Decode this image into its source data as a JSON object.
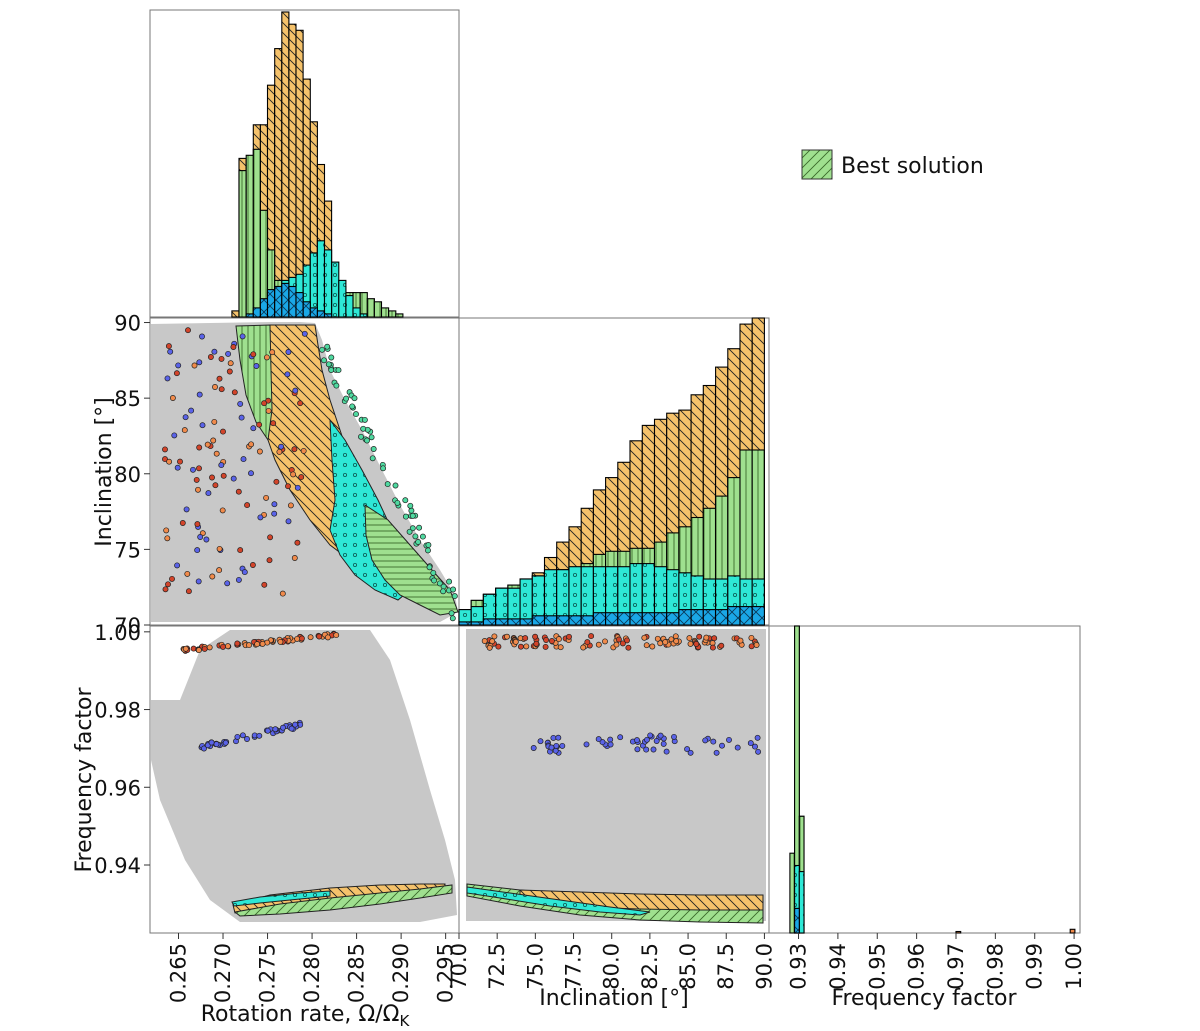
{
  "chart_data": {
    "type": "corner",
    "title": "",
    "legend": {
      "entries": [
        "Best solution"
      ],
      "placement": "top-right"
    },
    "colors": {
      "scatter_bg": "#c8c8c8",
      "orange": "#f5c26b",
      "light_green": "#9fe08f",
      "teal": "#2ee8d6",
      "blue": "#1aa7e6",
      "red_points": "#d2442a",
      "orange_points": "#f08a4b",
      "blue_points": "#5a63e8"
    },
    "axes": {
      "rotation": {
        "label": "Rotation rate, Ω/Ω",
        "label_sub": "K",
        "range": [
          0.2618,
          0.2965
        ],
        "ticks": [
          "0.265",
          "0.270",
          "0.275",
          "0.280",
          "0.285",
          "0.290",
          "0.295"
        ]
      },
      "inclination": {
        "label": "Inclination [°]",
        "range": [
          70,
          90.3
        ],
        "ticks": [
          "70.0",
          "72.5",
          "75.0",
          "77.5",
          "80.0",
          "82.5",
          "85.0",
          "87.5",
          "90.0"
        ],
        "y_ticks": [
          "70",
          "75",
          "80",
          "85",
          "90"
        ]
      },
      "frequency": {
        "label": "Frequency factor",
        "range": [
          0.9225,
          1.0015
        ],
        "ticks": [
          "0.93",
          "0.94",
          "0.95",
          "0.96",
          "0.97",
          "0.98",
          "0.99",
          "1.00"
        ],
        "y_ticks": [
          "0.94",
          "0.96",
          "0.98",
          "1.00"
        ]
      }
    },
    "hist_rotation": {
      "bin_edges": [
        0.271,
        0.2718,
        0.2726,
        0.2734,
        0.2742,
        0.275,
        0.2758,
        0.2766,
        0.2774,
        0.2782,
        0.279,
        0.2798,
        0.2806,
        0.2814,
        0.2822,
        0.283,
        0.2838,
        0.2846,
        0.2854,
        0.2862,
        0.287,
        0.2878,
        0.2886,
        0.2894,
        0.2902,
        0.291
      ],
      "series": [
        {
          "name": "orange",
          "values": [
            2,
            52,
            52,
            63,
            63,
            76,
            88,
            100,
            96,
            94,
            78,
            64,
            50,
            38,
            12,
            10,
            3,
            2,
            1,
            1,
            0,
            0,
            0,
            0,
            0
          ]
        },
        {
          "name": "light_green",
          "values": [
            0,
            48,
            53,
            55,
            35,
            22,
            12,
            8,
            6,
            5,
            6,
            5,
            8,
            10,
            10,
            10,
            8,
            8,
            8,
            6,
            5,
            3,
            2,
            1,
            0
          ]
        },
        {
          "name": "teal",
          "values": [
            0,
            0,
            0,
            2,
            5,
            8,
            10,
            12,
            13,
            14,
            17,
            21,
            25,
            22,
            18,
            12,
            7,
            3,
            1,
            0,
            0,
            0,
            0,
            0,
            0
          ]
        },
        {
          "name": "blue",
          "values": [
            0,
            0,
            1,
            3,
            6,
            9,
            10,
            11,
            10,
            8,
            5,
            3,
            2,
            1,
            0,
            0,
            0,
            0,
            0,
            0,
            0,
            0,
            0,
            0,
            0
          ]
        }
      ]
    },
    "hist_inclination": {
      "bin_edges": [
        70.0,
        70.8,
        71.6,
        72.4,
        73.2,
        74.0,
        74.8,
        75.6,
        76.4,
        77.2,
        78.0,
        78.8,
        79.6,
        80.4,
        81.2,
        82.0,
        82.8,
        83.6,
        84.4,
        85.2,
        86.0,
        86.8,
        87.6,
        88.4,
        89.2,
        90.0
      ],
      "series": [
        {
          "name": "orange",
          "values": [
            5,
            8,
            10,
            12,
            13,
            15,
            17,
            22,
            27,
            32,
            38,
            44,
            48,
            53,
            60,
            65,
            67,
            69,
            70,
            75,
            78,
            84,
            90,
            98,
            100
          ]
        },
        {
          "name": "light_green",
          "values": [
            5,
            8,
            10,
            12,
            13,
            15,
            16,
            17,
            18,
            18,
            20,
            23,
            24,
            24,
            25,
            25,
            27,
            30,
            32,
            35,
            38,
            42,
            48,
            57,
            57
          ]
        },
        {
          "name": "teal",
          "values": [
            5,
            6,
            10,
            12,
            12,
            15,
            16,
            18,
            18,
            19,
            19,
            19,
            19,
            19,
            20,
            20,
            19,
            18,
            17,
            16,
            15,
            15,
            16,
            15,
            15
          ]
        },
        {
          "name": "blue",
          "values": [
            1,
            1,
            2,
            2,
            2,
            2,
            3,
            3,
            3,
            3,
            3,
            4,
            4,
            4,
            4,
            4,
            4,
            4,
            5,
            5,
            5,
            5,
            6,
            6,
            6
          ]
        }
      ]
    },
    "hist_frequency": {
      "bin_edges": [
        0.9278,
        0.929,
        0.9302,
        0.9314,
        0.9326
      ],
      "series": [
        {
          "name": "orange",
          "values": [
            0,
            100,
            38,
            0
          ]
        },
        {
          "name": "light_green",
          "values": [
            26,
            100,
            38,
            0
          ]
        },
        {
          "name": "teal",
          "values": [
            0,
            22,
            20,
            0
          ]
        },
        {
          "name": "blue",
          "values": [
            0,
            8,
            0,
            0
          ]
        }
      ],
      "minor_bins": [
        {
          "range": [
            0.97,
            0.9712
          ],
          "value": 0.5
        },
        {
          "range": [
            0.999,
            1.0002
          ],
          "value": 1.2
        }
      ]
    }
  }
}
